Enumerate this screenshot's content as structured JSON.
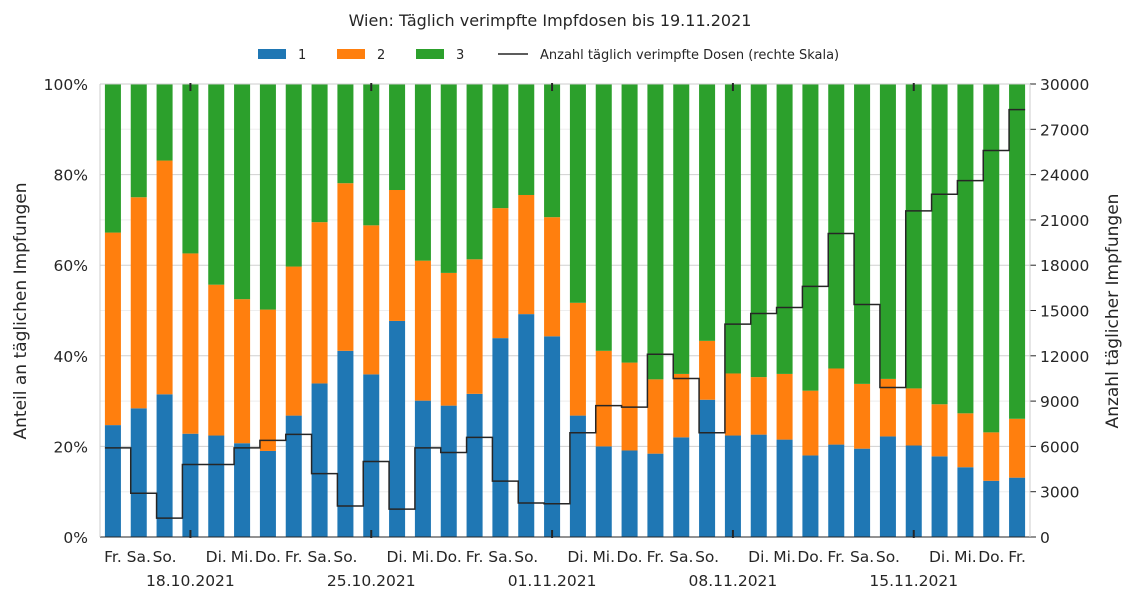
{
  "chart_data": {
    "type": "bar",
    "stacked": true,
    "title": "Wien: Täglich verimpfte Impfdosen bis 19.11.2021",
    "ylabel": "Anteil an täglichen Impfungen",
    "y2label": "Anzahl täglicher Impfungen",
    "ylim": [
      0,
      100
    ],
    "y2lim": [
      0,
      30000
    ],
    "yticks": [
      "0%",
      "20%",
      "40%",
      "60%",
      "80%",
      "100%"
    ],
    "y2ticks": [
      "0",
      "3000",
      "6000",
      "9000",
      "12000",
      "15000",
      "18000",
      "21000",
      "24000",
      "27000",
      "30000"
    ],
    "categories": [
      "2021-10-15",
      "2021-10-16",
      "2021-10-17",
      "2021-10-18",
      "2021-10-19",
      "2021-10-20",
      "2021-10-21",
      "2021-10-22",
      "2021-10-23",
      "2021-10-24",
      "2021-10-25",
      "2021-10-26",
      "2021-10-27",
      "2021-10-28",
      "2021-10-29",
      "2021-10-30",
      "2021-10-31",
      "2021-11-01",
      "2021-11-02",
      "2021-11-03",
      "2021-11-04",
      "2021-11-05",
      "2021-11-06",
      "2021-11-07",
      "2021-11-08",
      "2021-11-09",
      "2021-11-10",
      "2021-11-11",
      "2021-11-12",
      "2021-11-13",
      "2021-11-14",
      "2021-11-15",
      "2021-11-16",
      "2021-11-17",
      "2021-11-18",
      "2021-11-19"
    ],
    "x_day_labels": [
      "Fr.",
      "Sa.",
      "So.",
      "",
      "Di.",
      "Mi.",
      "Do.",
      "Fr.",
      "Sa.",
      "So.",
      "",
      "Di.",
      "Mi.",
      "Do.",
      "Fr.",
      "Sa.",
      "So.",
      "",
      "Di.",
      "Mi.",
      "Do.",
      "Fr.",
      "Sa.",
      "So.",
      "",
      "Di.",
      "Mi.",
      "Do.",
      "Fr.",
      "Sa.",
      "So.",
      "",
      "Di.",
      "Mi.",
      "Do.",
      "Fr."
    ],
    "x_week_labels": [
      "18.10.2021",
      "25.10.2021",
      "01.11.2021",
      "08.11.2021",
      "15.11.2021"
    ],
    "series": [
      {
        "name": "1",
        "color": "#1f77b4",
        "values": [
          24.7,
          28.4,
          31.5,
          22.8,
          22.4,
          20.7,
          19.0,
          26.8,
          33.9,
          41.1,
          35.9,
          47.7,
          30.1,
          29.0,
          31.6,
          43.9,
          49.2,
          44.3,
          26.8,
          20.0,
          19.1,
          18.4,
          22.0,
          30.3,
          22.4,
          22.6,
          21.5,
          18.0,
          20.4,
          19.5,
          22.2,
          20.2,
          17.8,
          15.4,
          12.4,
          13.1
        ]
      },
      {
        "name": "2",
        "color": "#ff7f0e",
        "values": [
          42.5,
          46.6,
          51.6,
          39.8,
          33.3,
          31.8,
          31.2,
          32.9,
          35.6,
          37.0,
          32.9,
          28.9,
          30.9,
          29.3,
          29.7,
          28.7,
          26.3,
          26.3,
          24.9,
          21.1,
          19.4,
          16.4,
          14.0,
          13.0,
          13.7,
          12.7,
          14.5,
          14.3,
          16.8,
          14.3,
          12.7,
          12.6,
          11.5,
          11.9,
          10.7,
          13.0
        ]
      },
      {
        "name": "3",
        "color": "#2ca02c",
        "values": [
          32.8,
          25.0,
          16.9,
          37.4,
          44.3,
          47.5,
          49.8,
          40.3,
          30.5,
          21.9,
          31.2,
          23.4,
          39.0,
          41.7,
          38.7,
          27.4,
          24.5,
          29.4,
          48.3,
          58.9,
          61.5,
          65.2,
          64.0,
          56.7,
          63.9,
          64.7,
          64.0,
          67.7,
          62.8,
          66.2,
          65.1,
          67.2,
          70.7,
          72.7,
          76.9,
          73.9
        ]
      }
    ],
    "line": {
      "name": "Anzahl täglich verimpfte Dosen (rechte Skala)",
      "color": "#262626",
      "values": [
        5900,
        2900,
        1250,
        4800,
        4800,
        5900,
        6400,
        6800,
        4200,
        2050,
        5000,
        1850,
        5900,
        5600,
        6600,
        3700,
        2250,
        2200,
        6900,
        8700,
        8600,
        12100,
        10500,
        6900,
        14100,
        14800,
        15200,
        16600,
        20100,
        15400,
        9900,
        21600,
        22700,
        23600,
        25600,
        28300
      ]
    },
    "legend_position": "top-center",
    "grid": true
  }
}
